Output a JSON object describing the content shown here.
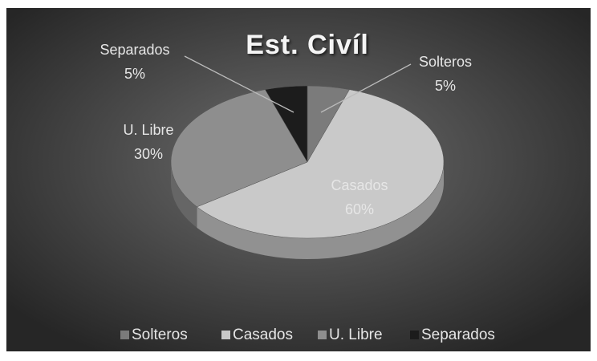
{
  "chart_data": {
    "type": "pie",
    "title": "Est. Civíl",
    "categories": [
      "Solteros",
      "Casados",
      "U. Libre",
      "Separados"
    ],
    "values": [
      5,
      60,
      30,
      5
    ],
    "value_labels": [
      "5%",
      "60%",
      "30%",
      "5%"
    ],
    "colors": [
      "#7b7b7b",
      "#c9c9c9",
      "#8e8e8e",
      "#1c1c1c"
    ],
    "legend": "bottom"
  }
}
